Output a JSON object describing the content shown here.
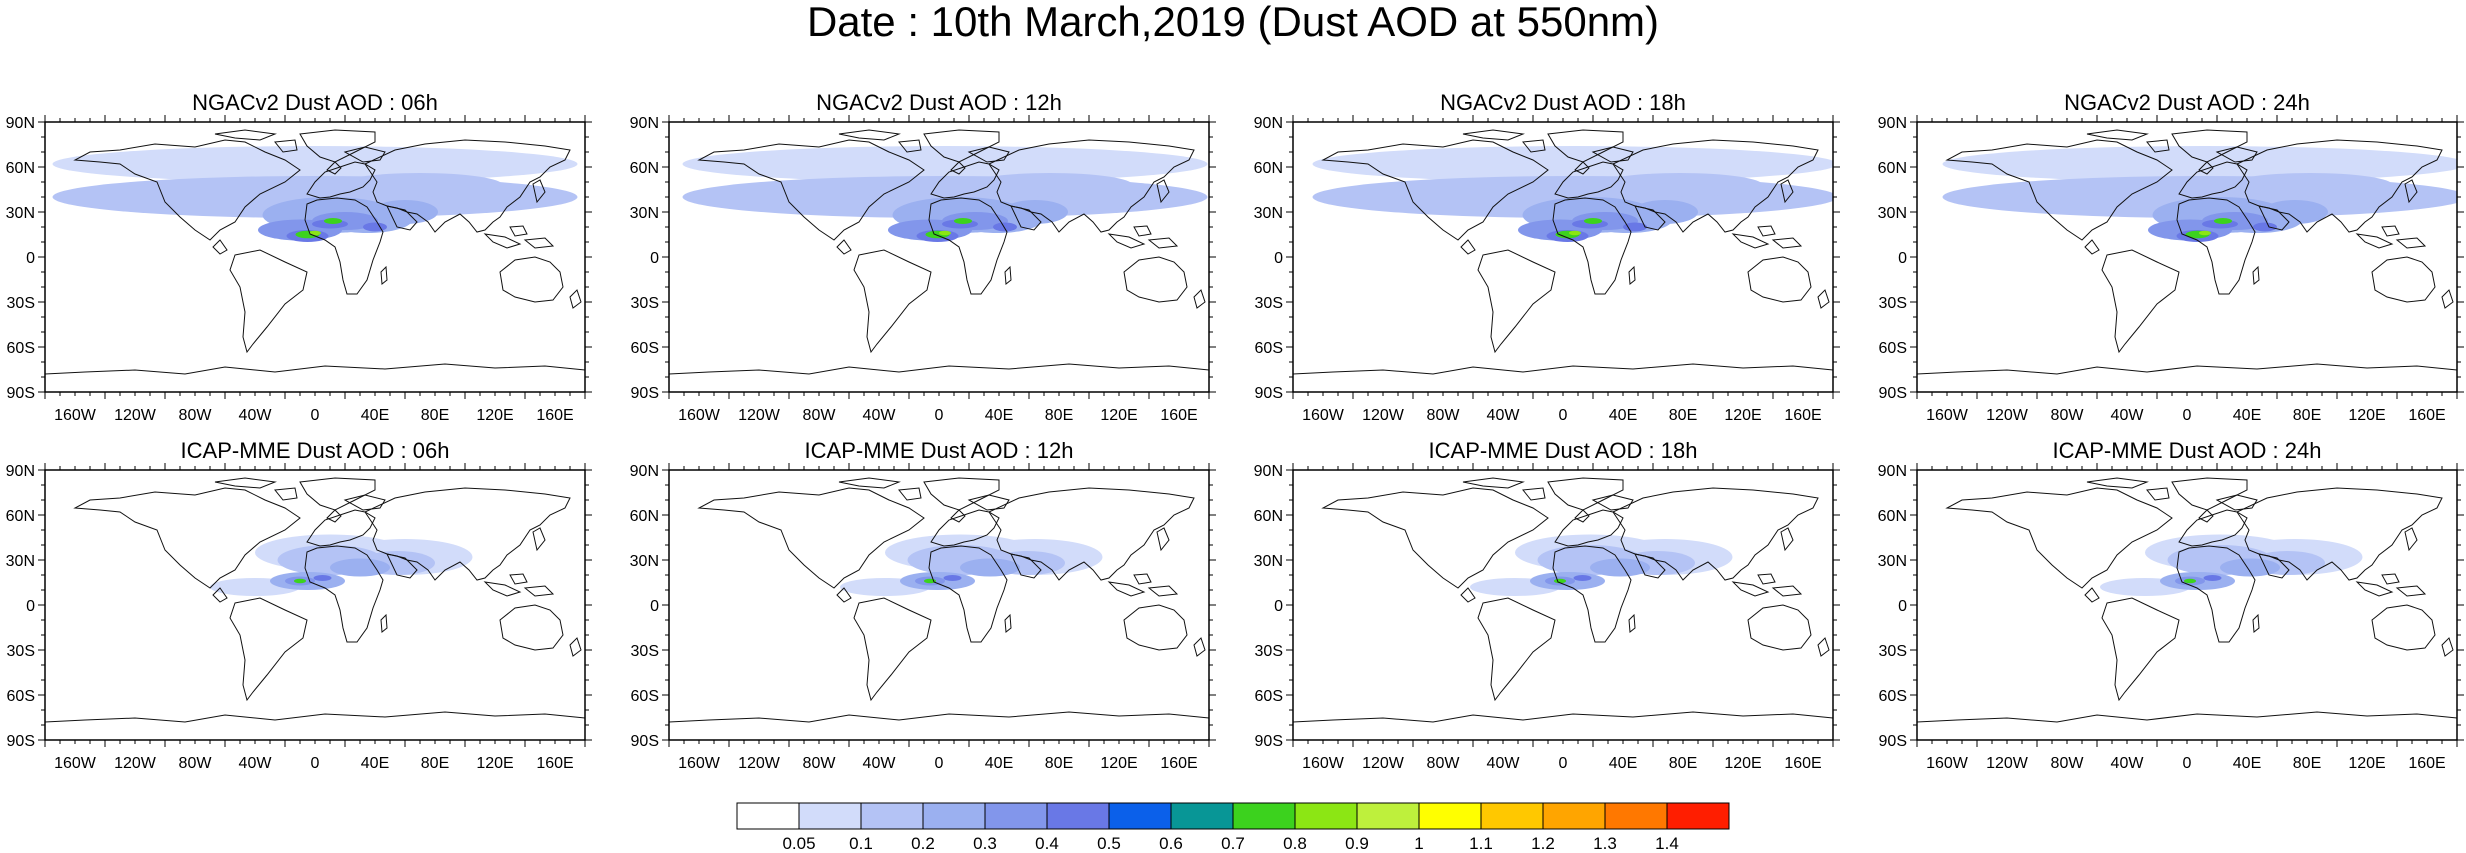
{
  "title": "Date : 10th March,2019 (Dust AOD at 550nm)",
  "lat_ticks": [
    "90N",
    "60N",
    "30N",
    "0",
    "30S",
    "60S",
    "90S"
  ],
  "lon_ticks": [
    "160W",
    "120W",
    "80W",
    "40W",
    "0",
    "40E",
    "80E",
    "120E",
    "160E"
  ],
  "panels": [
    {
      "title": "NGACv2 Dust AOD : 06h",
      "model": "NGACv2",
      "hour": 6
    },
    {
      "title": "NGACv2 Dust AOD : 12h",
      "model": "NGACv2",
      "hour": 12
    },
    {
      "title": "NGACv2 Dust AOD : 18h",
      "model": "NGACv2",
      "hour": 18
    },
    {
      "title": "NGACv2 Dust AOD : 24h",
      "model": "NGACv2",
      "hour": 24
    },
    {
      "title": "ICAP-MME Dust AOD : 06h",
      "model": "ICAP-MME",
      "hour": 6
    },
    {
      "title": "ICAP-MME Dust AOD : 12h",
      "model": "ICAP-MME",
      "hour": 12
    },
    {
      "title": "ICAP-MME Dust AOD : 18h",
      "model": "ICAP-MME",
      "hour": 18
    },
    {
      "title": "ICAP-MME Dust AOD : 24h",
      "model": "ICAP-MME",
      "hour": 24
    }
  ],
  "colorbar": {
    "labels": [
      "0.05",
      "0.1",
      "0.2",
      "0.3",
      "0.4",
      "0.5",
      "0.6",
      "0.7",
      "0.8",
      "0.9",
      "1",
      "1.1",
      "1.2",
      "1.3",
      "1.4"
    ],
    "colors": [
      "#ffffff",
      "#d2dcfa",
      "#b4c3f5",
      "#9bb0f0",
      "#8296eb",
      "#6978e6",
      "#0b60ea",
      "#089696",
      "#3cd21e",
      "#8ce614",
      "#bef03c",
      "#ffff00",
      "#ffc800",
      "#ffa500",
      "#ff7800",
      "#ff1e00"
    ]
  },
  "map_data": {
    "projection": "cylindrical-equidistant",
    "lon_range": [
      -180,
      180
    ],
    "lat_range": [
      -90,
      90
    ],
    "variable": "Dust AOD at 550nm"
  }
}
